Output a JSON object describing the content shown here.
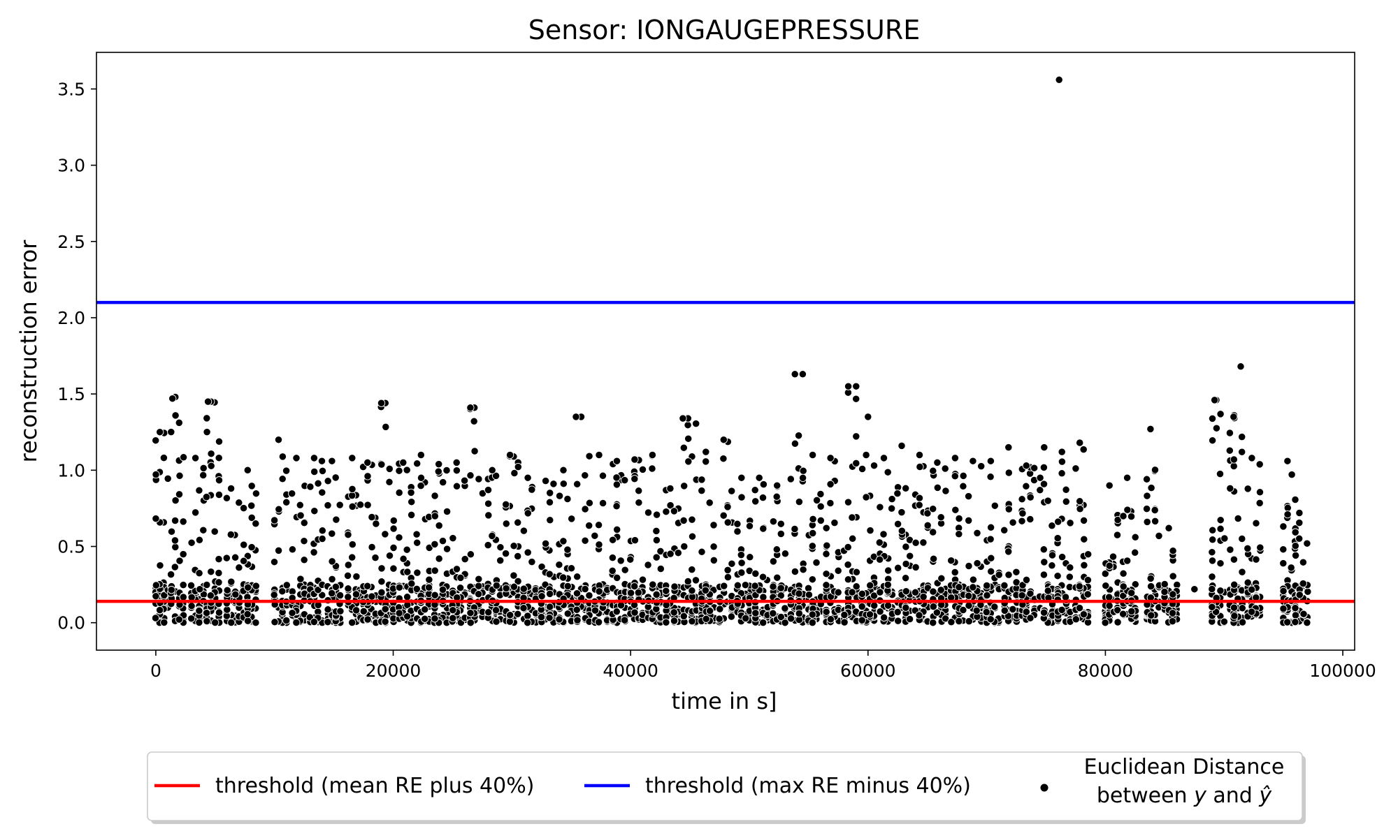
{
  "chart_data": {
    "type": "scatter",
    "title": "Sensor: IONGAUGEPRESSURE",
    "xlabel": "time in s]",
    "ylabel": "reconstruction error",
    "xlim": [
      -5000,
      101000
    ],
    "ylim": [
      -0.18,
      3.74
    ],
    "x_ticks": [
      "0",
      "20000",
      "40000",
      "60000",
      "80000",
      "100000"
    ],
    "y_ticks": [
      "0.0",
      "0.5",
      "1.0",
      "1.5",
      "2.0",
      "2.5",
      "3.0",
      "3.5"
    ],
    "grid": false,
    "legend_placement": "below",
    "thresholds": [
      {
        "name": "threshold (mean RE plus 40%)",
        "value": 0.14,
        "color": "#ff0000"
      },
      {
        "name": "threshold (max RE minus 40%)",
        "value": 2.1,
        "color": "#0000ff"
      }
    ],
    "series": [
      {
        "name": "Euclidean Distance between y and ŷ",
        "legend_line1": "Euclidean Distance",
        "legend_line2_parts": [
          "between ",
          "y",
          " and ",
          "ŷ"
        ],
        "color": "#000000",
        "clusters_x": [
          0,
          1300,
          3000,
          4300,
          6000,
          7400,
          10000,
          11500,
          13000,
          14500,
          16200,
          17500,
          19000,
          20500,
          22000,
          23500,
          25000,
          26500,
          28000,
          29500,
          31000,
          32500,
          34000,
          35500,
          37000,
          38500,
          40000,
          41500,
          43000,
          44500,
          46000,
          47500,
          49000,
          50500,
          52000,
          53500,
          55000,
          56500,
          58000,
          59500,
          61000,
          62500,
          64000,
          65500,
          67000,
          68500,
          70000,
          71500,
          73000,
          74500,
          76000,
          77500,
          80000,
          81500,
          83500,
          85000,
          89000,
          90500,
          92000,
          95000,
          96000
        ],
        "cluster_max_y": [
          1.25,
          1.48,
          1.08,
          1.45,
          0.88,
          1.0,
          1.2,
          1.08,
          1.08,
          1.06,
          1.08,
          1.05,
          1.44,
          1.05,
          1.1,
          1.04,
          1.05,
          1.41,
          1.0,
          1.1,
          0.95,
          0.93,
          1.0,
          1.35,
          1.1,
          1.06,
          1.07,
          1.1,
          0.88,
          1.34,
          1.12,
          1.2,
          0.95,
          0.95,
          0.9,
          1.63,
          1.1,
          1.08,
          1.55,
          1.1,
          1.08,
          1.16,
          1.1,
          1.05,
          1.08,
          1.06,
          1.06,
          1.15,
          1.03,
          1.15,
          1.12,
          1.18,
          0.9,
          0.95,
          1.27,
          0.62,
          1.46,
          1.36,
          1.08,
          1.06,
          0.72
        ],
        "outliers": [
          {
            "x": 76100,
            "y": 3.56
          },
          {
            "x": 1400,
            "y": 1.47
          },
          {
            "x": 4400,
            "y": 1.45
          },
          {
            "x": 19000,
            "y": 1.44
          },
          {
            "x": 26500,
            "y": 1.41
          },
          {
            "x": 35400,
            "y": 1.35
          },
          {
            "x": 44400,
            "y": 1.34
          },
          {
            "x": 54500,
            "y": 1.63
          },
          {
            "x": 59000,
            "y": 1.55
          },
          {
            "x": 60000,
            "y": 1.35
          },
          {
            "x": 83800,
            "y": 1.27
          },
          {
            "x": 89200,
            "y": 1.46
          },
          {
            "x": 90800,
            "y": 1.35
          },
          {
            "x": 91400,
            "y": 1.68
          },
          {
            "x": 87500,
            "y": 0.22
          }
        ]
      }
    ]
  }
}
